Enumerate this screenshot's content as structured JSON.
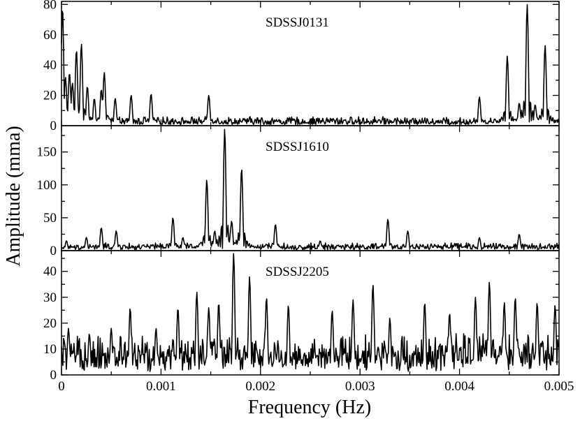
{
  "chart_data": {
    "type": "line",
    "xlabel": "Frequency (Hz)",
    "ylabel": "Amplitude (mma)",
    "xlim": [
      0,
      0.005
    ],
    "x_ticks": [
      "0",
      "0.001",
      "0.002",
      "0.003",
      "0.004",
      "0.005"
    ],
    "grid": false,
    "panels": [
      {
        "name": "SDSSJ0131",
        "ylim": [
          0,
          82
        ],
        "y_ticks": [
          "0",
          "20",
          "40",
          "60",
          "80"
        ],
        "noise": 6,
        "peaks": [
          [
            1e-05,
            78
          ],
          [
            4e-05,
            32
          ],
          [
            8e-05,
            35
          ],
          [
            0.00011,
            28
          ],
          [
            0.00015,
            50
          ],
          [
            0.0002,
            54
          ],
          [
            0.00026,
            26
          ],
          [
            0.00033,
            18
          ],
          [
            0.0004,
            24
          ],
          [
            0.00043,
            35
          ],
          [
            0.00054,
            18
          ],
          [
            0.0007,
            20
          ],
          [
            0.0009,
            21
          ],
          [
            0.00148,
            20
          ],
          [
            0.0042,
            19
          ],
          [
            0.00448,
            46
          ],
          [
            0.00468,
            80
          ],
          [
            0.00486,
            53
          ],
          [
            0.0046,
            15
          ],
          [
            0.00476,
            14
          ]
        ]
      },
      {
        "name": "SDSSJ1610",
        "ylim": [
          0,
          190
        ],
        "y_ticks": [
          "0",
          "50",
          "100",
          "150"
        ],
        "noise": 12,
        "peaks": [
          [
            5e-05,
            15
          ],
          [
            0.00025,
            20
          ],
          [
            0.0004,
            35
          ],
          [
            0.00055,
            30
          ],
          [
            0.00112,
            50
          ],
          [
            0.00122,
            20
          ],
          [
            0.00146,
            108
          ],
          [
            0.00154,
            30
          ],
          [
            0.00164,
            185
          ],
          [
            0.00171,
            45
          ],
          [
            0.00181,
            125
          ],
          [
            0.00215,
            40
          ],
          [
            0.0026,
            15
          ],
          [
            0.00328,
            48
          ],
          [
            0.00348,
            30
          ],
          [
            0.0042,
            20
          ],
          [
            0.0046,
            25
          ]
        ]
      },
      {
        "name": "SDSSJ2205",
        "ylim": [
          0,
          48
        ],
        "y_ticks": [
          "0",
          "10",
          "20",
          "30",
          "40"
        ],
        "noise": 16,
        "peaks": [
          [
            7e-05,
            18
          ],
          [
            0.00028,
            16
          ],
          [
            0.0005,
            18
          ],
          [
            0.00069,
            26
          ],
          [
            0.00095,
            18
          ],
          [
            0.00117,
            26
          ],
          [
            0.00136,
            32
          ],
          [
            0.00148,
            26
          ],
          [
            0.00158,
            28
          ],
          [
            0.00173,
            47
          ],
          [
            0.00189,
            38
          ],
          [
            0.00206,
            30
          ],
          [
            0.00228,
            27
          ],
          [
            0.00272,
            25
          ],
          [
            0.00293,
            29
          ],
          [
            0.00313,
            35
          ],
          [
            0.0033,
            22
          ],
          [
            0.00365,
            28
          ],
          [
            0.0039,
            24
          ],
          [
            0.00416,
            30
          ],
          [
            0.0043,
            36
          ],
          [
            0.00445,
            28
          ],
          [
            0.00456,
            30
          ],
          [
            0.00478,
            28
          ],
          [
            0.00496,
            27
          ]
        ]
      }
    ]
  }
}
